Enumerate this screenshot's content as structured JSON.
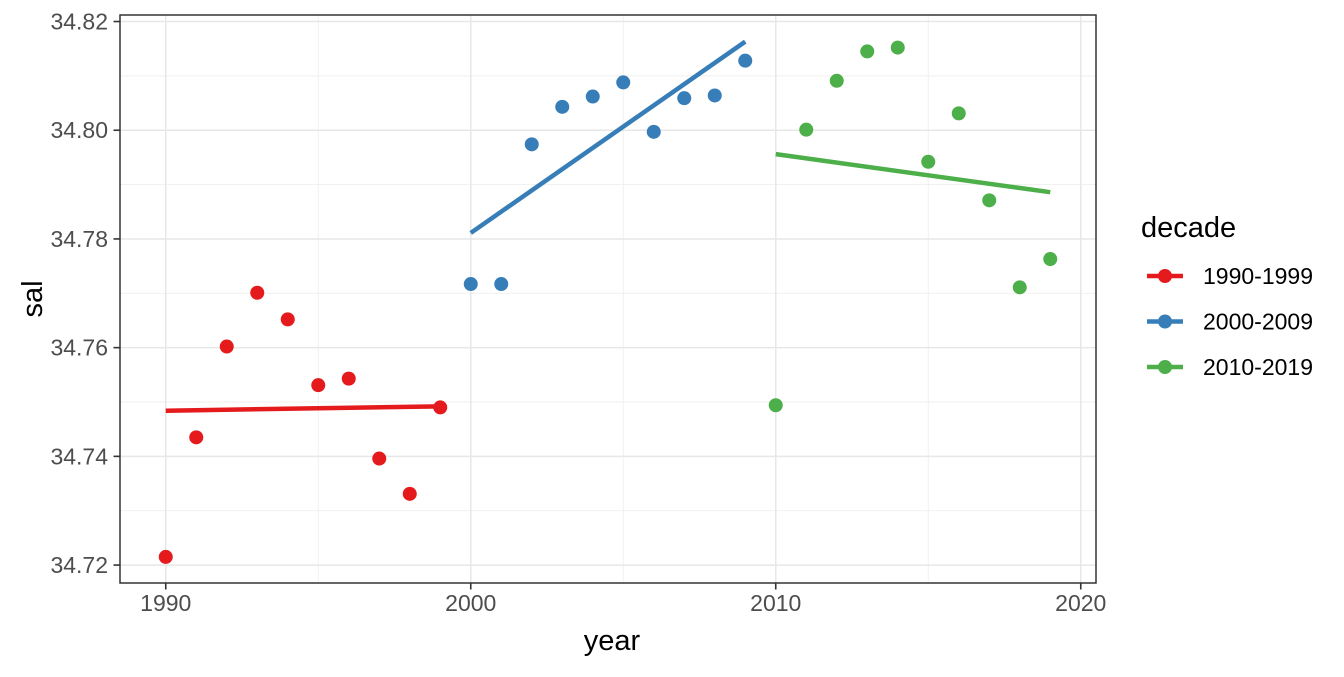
{
  "figure": {
    "background": "#FFFFFF",
    "panel_background": "#FFFFFF",
    "panel_border_color": "#333333",
    "grid_major_color": "#E7E7E7",
    "grid_minor_color": "#EFEFEF",
    "tick_color": "#333333",
    "tick_label_color": "#4D4D4D",
    "axis_title_color": "#000000"
  },
  "chart_data": {
    "type": "scatter",
    "title": "",
    "xlabel": "year",
    "ylabel": "sal",
    "legend_title": "decade",
    "legend_position": "right",
    "grid": true,
    "xlim": [
      1988.5,
      2020.5
    ],
    "ylim": [
      34.7167,
      34.8212
    ],
    "x_ticks": [
      {
        "v": 1990,
        "label": "1990"
      },
      {
        "v": 2000,
        "label": "2000"
      },
      {
        "v": 2010,
        "label": "2010"
      },
      {
        "v": 2020,
        "label": "2020"
      }
    ],
    "y_ticks": [
      {
        "v": 34.72,
        "label": "34.72"
      },
      {
        "v": 34.74,
        "label": "34.74"
      },
      {
        "v": 34.76,
        "label": "34.76"
      },
      {
        "v": 34.78,
        "label": "34.78"
      },
      {
        "v": 34.8,
        "label": "34.80"
      },
      {
        "v": 34.82,
        "label": "34.82"
      }
    ],
    "x_minor_ticks": [
      1995,
      2005,
      2015
    ],
    "y_minor_ticks": [
      34.73,
      34.75,
      34.77,
      34.79,
      34.81
    ],
    "point_radius": 7,
    "trend_line_width": 4.5,
    "series": [
      {
        "name": "1990-1999",
        "color": "#E41A1C",
        "x": [
          1990,
          1991,
          1992,
          1993,
          1994,
          1995,
          1996,
          1997,
          1998,
          1999
        ],
        "y": [
          34.7215,
          34.7435,
          34.7602,
          34.7701,
          34.7652,
          34.7531,
          34.7543,
          34.7396,
          34.7331,
          34.749
        ],
        "trend": {
          "x1": 1990,
          "y1": 34.7484,
          "x2": 1999,
          "y2": 34.7492
        }
      },
      {
        "name": "2000-2009",
        "color": "#377EB8",
        "x": [
          2000,
          2001,
          2002,
          2003,
          2004,
          2005,
          2006,
          2007,
          2008,
          2009
        ],
        "y": [
          34.7717,
          34.7717,
          34.7974,
          34.8043,
          34.8062,
          34.8088,
          34.7997,
          34.8059,
          34.8064,
          34.8128
        ],
        "trend": {
          "x1": 2000,
          "y1": 34.7811,
          "x2": 2009,
          "y2": 34.8163
        }
      },
      {
        "name": "2010-2019",
        "color": "#4DAF4A",
        "x": [
          2010,
          2011,
          2012,
          2013,
          2014,
          2015,
          2016,
          2017,
          2018,
          2019
        ],
        "y": [
          34.7494,
          34.8001,
          34.8091,
          34.8145,
          34.8152,
          34.7942,
          34.8031,
          34.7871,
          34.7711,
          34.7763
        ],
        "trend": {
          "x1": 2010,
          "y1": 34.7956,
          "x2": 2019,
          "y2": 34.7886
        }
      }
    ]
  }
}
